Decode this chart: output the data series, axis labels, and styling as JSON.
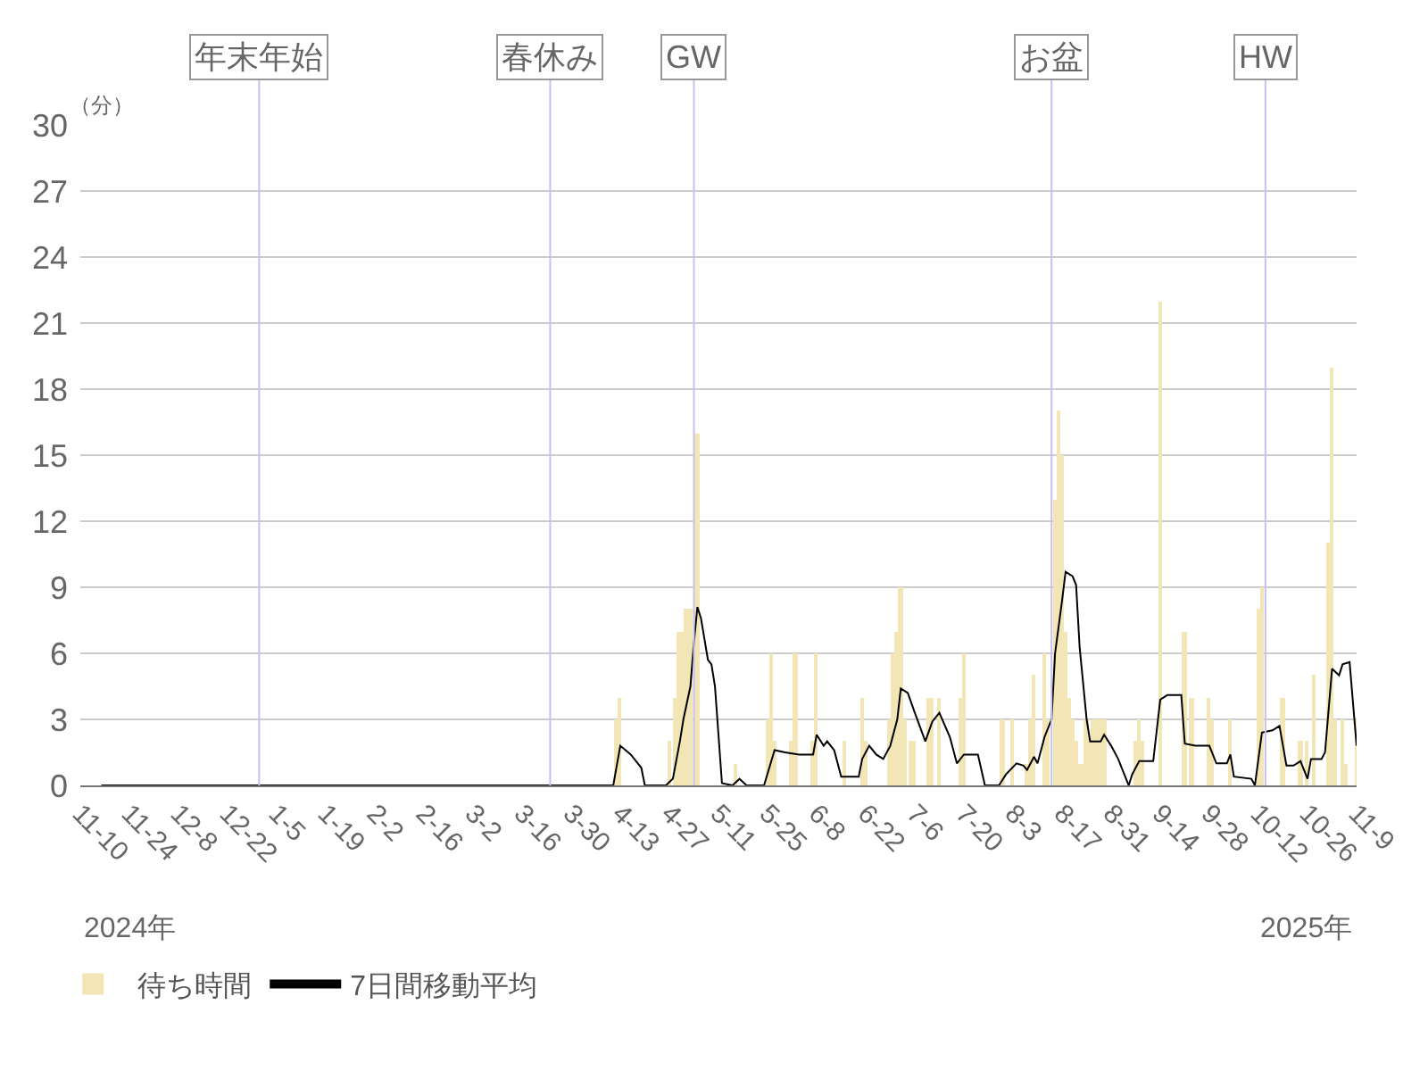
{
  "chart_data": {
    "type": "bar",
    "ylabel": "（分）",
    "annotations": [
      "2024年",
      "2025年"
    ],
    "xlim": [
      "2024-11-10",
      "2025-11-09"
    ],
    "xticks": [
      {
        "value": "2024-11-10",
        "label": "11-10"
      },
      {
        "value": "2024-11-24",
        "label": "11-24"
      },
      {
        "value": "2024-12-08",
        "label": "12-8"
      },
      {
        "value": "2024-12-22",
        "label": "12-22"
      },
      {
        "value": "2025-01-05",
        "label": "1-5"
      },
      {
        "value": "2025-01-19",
        "label": "1-19"
      },
      {
        "value": "2025-02-02",
        "label": "2-2"
      },
      {
        "value": "2025-02-16",
        "label": "2-16"
      },
      {
        "value": "2025-03-02",
        "label": "3-2"
      },
      {
        "value": "2025-03-16",
        "label": "3-16"
      },
      {
        "value": "2025-03-30",
        "label": "3-30"
      },
      {
        "value": "2025-04-13",
        "label": "4-13"
      },
      {
        "value": "2025-04-27",
        "label": "4-27"
      },
      {
        "value": "2025-05-11",
        "label": "5-11"
      },
      {
        "value": "2025-05-25",
        "label": "5-25"
      },
      {
        "value": "2025-06-08",
        "label": "6-8"
      },
      {
        "value": "2025-06-22",
        "label": "6-22"
      },
      {
        "value": "2025-07-06",
        "label": "7-6"
      },
      {
        "value": "2025-07-20",
        "label": "7-20"
      },
      {
        "value": "2025-08-03",
        "label": "8-3"
      },
      {
        "value": "2025-08-17",
        "label": "8-17"
      },
      {
        "value": "2025-08-31",
        "label": "8-31"
      },
      {
        "value": "2025-09-14",
        "label": "9-14"
      },
      {
        "value": "2025-09-28",
        "label": "9-28"
      },
      {
        "value": "2025-10-12",
        "label": "10-12"
      },
      {
        "value": "2025-10-26",
        "label": "10-26"
      },
      {
        "value": "2025-11-09",
        "label": "11-9"
      }
    ],
    "ylim": [
      0,
      30
    ],
    "yticks": [
      0,
      3,
      6,
      9,
      12,
      15,
      18,
      21,
      24,
      27,
      30
    ],
    "grid": "y",
    "legend": "bottom left",
    "ref_lines": [
      {
        "axis": "x",
        "value": "2024-12-31",
        "label": "年末年始",
        "color": "#c8bff0"
      },
      {
        "axis": "x",
        "value": "2025-03-24",
        "label": "春休み",
        "color": "#c8bff0"
      },
      {
        "axis": "x",
        "value": "2025-05-04",
        "label": "GW",
        "color": "#c8bff0"
      },
      {
        "axis": "x",
        "value": "2025-08-14",
        "label": "お盆",
        "color": "#c8bff0"
      },
      {
        "axis": "x",
        "value": "2025-10-14",
        "label": "HW",
        "color": "#c8bff0"
      }
    ],
    "series": [
      {
        "name": "待ち時間",
        "color": "#f2e5b6",
        "x": [
          "2025-04-12",
          "2025-04-13",
          "2025-04-27",
          "2025-04-29",
          "2025-04-30",
          "2025-05-01",
          "2025-05-02",
          "2025-05-03",
          "2025-05-05",
          "2025-05-16",
          "2025-05-25",
          "2025-05-26",
          "2025-05-27",
          "2025-06-01",
          "2025-06-02",
          "2025-06-07",
          "2025-06-08",
          "2025-06-16",
          "2025-06-21",
          "2025-06-22",
          "2025-06-29",
          "2025-06-30",
          "2025-07-01",
          "2025-07-02",
          "2025-07-03",
          "2025-07-05",
          "2025-07-06",
          "2025-07-10",
          "2025-07-11",
          "2025-07-13",
          "2025-07-19",
          "2025-07-20",
          "2025-07-31",
          "2025-08-03",
          "2025-08-07",
          "2025-08-08",
          "2025-08-09",
          "2025-08-12",
          "2025-08-13",
          "2025-08-15",
          "2025-08-16",
          "2025-08-17",
          "2025-08-18",
          "2025-08-19",
          "2025-08-20",
          "2025-08-21",
          "2025-08-22",
          "2025-08-23",
          "2025-08-24",
          "2025-08-25",
          "2025-08-26",
          "2025-08-27",
          "2025-08-28",
          "2025-08-29",
          "2025-09-07",
          "2025-09-08",
          "2025-09-09",
          "2025-09-14",
          "2025-09-21",
          "2025-09-23",
          "2025-09-28",
          "2025-09-29",
          "2025-10-04",
          "2025-10-12",
          "2025-10-13",
          "2025-10-19",
          "2025-10-24",
          "2025-10-26",
          "2025-10-28",
          "2025-11-01",
          "2025-11-02",
          "2025-11-03",
          "2025-11-05",
          "2025-11-06",
          "2025-11-09"
        ],
        "values": [
          3,
          4,
          2,
          4,
          7,
          7,
          8,
          8,
          16,
          1,
          3,
          6,
          2,
          2,
          6,
          2,
          6,
          2,
          4,
          2,
          3,
          6,
          7,
          9,
          3,
          2,
          2,
          4,
          4,
          4,
          4,
          6,
          3,
          3,
          1,
          3,
          5,
          6,
          3,
          13,
          17,
          15,
          7,
          4,
          3,
          2,
          1,
          1,
          3,
          2,
          3,
          3,
          3,
          3,
          2,
          3,
          2,
          22,
          7,
          4,
          4,
          3,
          3,
          8,
          9,
          4,
          2,
          2,
          5,
          11,
          19,
          3,
          3,
          1,
          3
        ]
      },
      {
        "name": "7日間移動平均",
        "type": "line",
        "color": "#000000",
        "line_style": "solid",
        "x": [
          "2024-11-16",
          "2025-04-11",
          "2025-04-13",
          "2025-04-16",
          "2025-04-18",
          "2025-04-19",
          "2025-04-20",
          "2025-04-26",
          "2025-04-28",
          "2025-04-30",
          "2025-05-01",
          "2025-05-03",
          "2025-05-04",
          "2025-05-05",
          "2025-05-06",
          "2025-05-08",
          "2025-05-09",
          "2025-05-10",
          "2025-05-12",
          "2025-05-15",
          "2025-05-17",
          "2025-05-19",
          "2025-05-24",
          "2025-05-27",
          "2025-05-30",
          "2025-06-03",
          "2025-06-07",
          "2025-06-08",
          "2025-06-10",
          "2025-06-11",
          "2025-06-13",
          "2025-06-15",
          "2025-06-20",
          "2025-06-21",
          "2025-06-23",
          "2025-06-25",
          "2025-06-27",
          "2025-06-29",
          "2025-07-01",
          "2025-07-02",
          "2025-07-04",
          "2025-07-06",
          "2025-07-09",
          "2025-07-11",
          "2025-07-13",
          "2025-07-16",
          "2025-07-18",
          "2025-07-20",
          "2025-07-24",
          "2025-07-26",
          "2025-07-30",
          "2025-08-01",
          "2025-08-04",
          "2025-08-06",
          "2025-08-07",
          "2025-08-09",
          "2025-08-10",
          "2025-08-12",
          "2025-08-14",
          "2025-08-15",
          "2025-08-17",
          "2025-08-18",
          "2025-08-20",
          "2025-08-21",
          "2025-08-22",
          "2025-08-24",
          "2025-08-25",
          "2025-08-28",
          "2025-08-29",
          "2025-08-31",
          "2025-09-02",
          "2025-09-04",
          "2025-09-05",
          "2025-09-06",
          "2025-09-08",
          "2025-09-12",
          "2025-09-14",
          "2025-09-16",
          "2025-09-20",
          "2025-09-21",
          "2025-09-24",
          "2025-09-28",
          "2025-09-29",
          "2025-09-30",
          "2025-10-03",
          "2025-10-04",
          "2025-10-05",
          "2025-10-10",
          "2025-10-11",
          "2025-10-13",
          "2025-10-16",
          "2025-10-18",
          "2025-10-20",
          "2025-10-22",
          "2025-10-24",
          "2025-10-26",
          "2025-10-27",
          "2025-10-30",
          "2025-10-31",
          "2025-11-02",
          "2025-11-04",
          "2025-11-05",
          "2025-11-07",
          "2025-11-09"
        ],
        "values": [
          0,
          0,
          1.8,
          1.4,
          1.0,
          0.8,
          0,
          0,
          0.3,
          2.0,
          3.0,
          4.5,
          6.5,
          8.1,
          7.6,
          5.7,
          5.5,
          4.5,
          0.1,
          0,
          0.3,
          0,
          0,
          1.6,
          1.5,
          1.4,
          1.4,
          2.3,
          1.8,
          2.0,
          1.6,
          0.4,
          0.4,
          1.2,
          1.8,
          1.4,
          1.2,
          1.8,
          3.0,
          4.4,
          4.2,
          3.3,
          2.0,
          2.9,
          3.3,
          2.2,
          1.0,
          1.4,
          1.4,
          0,
          0,
          0.5,
          1.0,
          0.9,
          0.7,
          1.3,
          1.0,
          2.2,
          3.0,
          6.0,
          8.4,
          9.7,
          9.5,
          9.1,
          6.3,
          3.0,
          2.0,
          2.0,
          2.3,
          1.8,
          1.2,
          0.4,
          0,
          0.5,
          1.1,
          1.1,
          3.9,
          4.1,
          4.1,
          1.9,
          1.8,
          1.8,
          1.4,
          1.0,
          1.0,
          1.4,
          0.4,
          0.3,
          0,
          2.4,
          2.5,
          2.7,
          0.9,
          0.9,
          1.1,
          0.3,
          1.2,
          1.2,
          1.5,
          5.3,
          5.0,
          5.5,
          5.6,
          1.8
        ]
      }
    ]
  }
}
